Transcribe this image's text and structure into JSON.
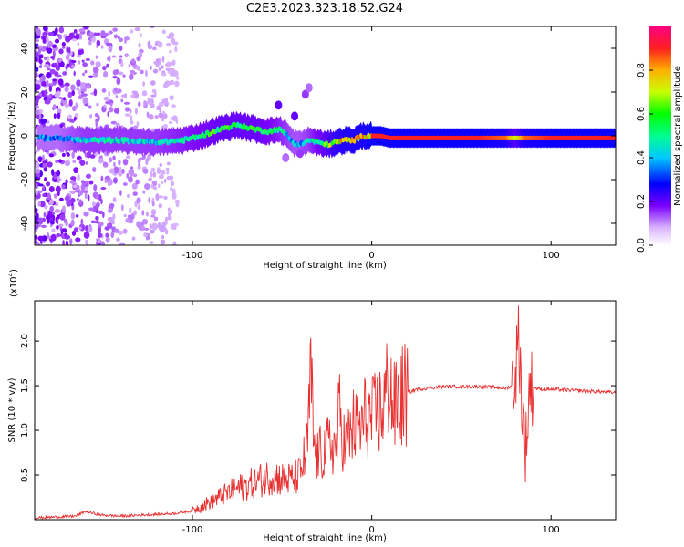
{
  "title": "C2E3.2023.323.18.52.G24",
  "chart_data": [
    {
      "type": "heatmap",
      "xlabel": "Height of straight line (km)",
      "ylabel": "Frequency (Hz)",
      "xlim": [
        -188,
        136
      ],
      "ylim": [
        -50,
        50
      ],
      "xticks": [
        "-100",
        "0",
        "100"
      ],
      "xtick_values": [
        -100,
        0,
        100
      ],
      "yticks": [
        "-40",
        "-20",
        "0",
        "20",
        "40"
      ],
      "ytick_values": [
        -40,
        -20,
        0,
        20,
        40
      ],
      "colorbar": {
        "label": "Normalized spectral amplitude",
        "range": [
          0,
          1
        ],
        "ticks": [
          "0.0",
          "0.2",
          "0.4",
          "0.6",
          "0.8"
        ],
        "tick_values": [
          0.0,
          0.2,
          0.4,
          0.6,
          0.8
        ]
      },
      "ridge": {
        "x": [
          -175,
          -160,
          -140,
          -120,
          -105,
          -95,
          -85,
          -75,
          -65,
          -58,
          -52,
          -48,
          -44,
          -40,
          -35,
          -30,
          -25,
          -20,
          -15,
          -10,
          -5,
          0,
          5,
          10,
          20,
          40,
          60,
          75,
          80,
          85,
          100,
          120,
          136
        ],
        "freq": [
          -1,
          -2,
          -2,
          -3,
          -2,
          0,
          3,
          5,
          3,
          2,
          3,
          1,
          -3,
          -4,
          -2,
          -3,
          -4,
          -3,
          -2,
          -2,
          0,
          0,
          0,
          -1,
          -1,
          -1,
          -1,
          -1,
          -1,
          -1,
          -1,
          -1,
          -1
        ],
        "amplitude": [
          0.4,
          0.5,
          0.5,
          0.5,
          0.55,
          0.6,
          0.65,
          0.65,
          0.65,
          0.6,
          0.55,
          0.5,
          0.45,
          0.45,
          0.5,
          0.6,
          0.7,
          0.8,
          0.85,
          0.85,
          0.85,
          0.9,
          0.9,
          0.9,
          0.9,
          0.9,
          0.9,
          0.85,
          0.7,
          0.85,
          0.9,
          0.9,
          0.9
        ]
      },
      "blobs": [
        {
          "x": -52,
          "y": 14,
          "amp": 0.2
        },
        {
          "x": -43,
          "y": 9,
          "amp": 0.2
        },
        {
          "x": -37,
          "y": 19,
          "amp": 0.15
        },
        {
          "x": -35,
          "y": 22,
          "amp": 0.12
        },
        {
          "x": -40,
          "y": -8,
          "amp": 0.15
        },
        {
          "x": -48,
          "y": -10,
          "amp": 0.12
        }
      ]
    },
    {
      "type": "line",
      "xlabel": "Height of straight line (km)",
      "ylabel": "SNR (10 * v/v)",
      "y_multiplier": "(x10",
      "y_multiplier_exponent": "4",
      "y_multiplier_close": ")",
      "xlim": [
        -188,
        136
      ],
      "ylim": [
        0,
        2.45
      ],
      "xticks": [
        "-100",
        "0",
        "100"
      ],
      "xtick_values": [
        -100,
        0,
        100
      ],
      "yticks": [
        "0.5",
        "1.0",
        "1.5",
        "2.0"
      ],
      "ytick_values": [
        0.5,
        1.0,
        1.5,
        2.0
      ],
      "series": [
        {
          "color": "#e83030",
          "x": [
            -188,
            -175,
            -165,
            -160,
            -150,
            -140,
            -130,
            -120,
            -110,
            -100,
            -95,
            -90,
            -85,
            -80,
            -75,
            -70,
            -65,
            -60,
            -55,
            -50,
            -45,
            -40,
            -36,
            -34,
            -32,
            -30,
            -28,
            -25,
            -22,
            -20,
            -18,
            -15,
            -12,
            -10,
            -8,
            -5,
            -3,
            0,
            3,
            6,
            8,
            10,
            12,
            15,
            18,
            20,
            25,
            30,
            35,
            40,
            50,
            60,
            70,
            75,
            78,
            80,
            82,
            84,
            86,
            88,
            90,
            95,
            100,
            110,
            120,
            130,
            136
          ],
          "y": [
            0.02,
            0.03,
            0.04,
            0.09,
            0.05,
            0.04,
            0.05,
            0.06,
            0.07,
            0.1,
            0.15,
            0.2,
            0.25,
            0.3,
            0.35,
            0.38,
            0.42,
            0.46,
            0.5,
            0.45,
            0.45,
            0.5,
            0.8,
            1.6,
            0.75,
            0.7,
            0.75,
            0.8,
            0.85,
            0.78,
            1.2,
            0.82,
            0.95,
            1.05,
            1.0,
            1.05,
            1.2,
            1.1,
            1.2,
            1.25,
            1.4,
            1.6,
            1.2,
            1.35,
            1.38,
            1.42,
            1.46,
            1.47,
            1.48,
            1.49,
            1.49,
            1.49,
            1.48,
            1.47,
            1.5,
            1.6,
            2.1,
            1.2,
            0.8,
            1.5,
            1.48,
            1.46,
            1.46,
            1.45,
            1.44,
            1.43,
            1.42
          ]
        }
      ]
    }
  ]
}
